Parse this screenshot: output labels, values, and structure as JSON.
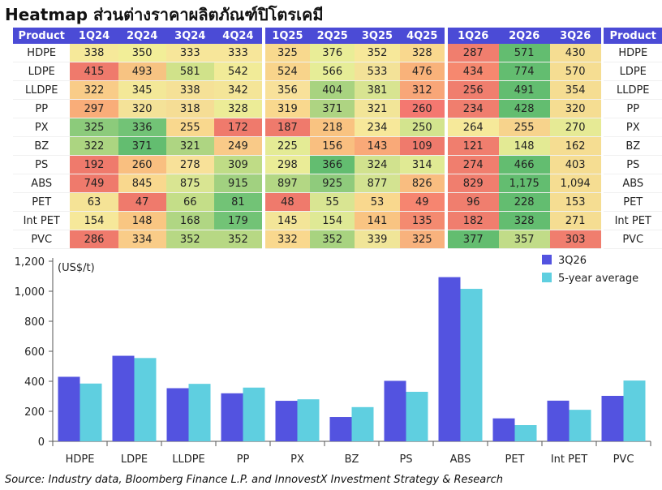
{
  "title": "Heatmap ส่วนต่างราคาผลิตภัณฑ์ปิโตรเคมี",
  "source": "Source: Industry data, Bloomberg Finance L.P. and InnovestX Investment Strategy & Research",
  "heatmap": {
    "header_label": "Product",
    "groups": [
      [
        "1Q24",
        "2Q24",
        "3Q24",
        "4Q24"
      ],
      [
        "1Q25",
        "2Q25",
        "3Q25",
        "4Q25"
      ],
      [
        "1Q26",
        "2Q26",
        "3Q26"
      ]
    ],
    "rows": [
      {
        "product": "HDPE",
        "values": [
          "338",
          "350",
          "333",
          "333",
          "325",
          "376",
          "352",
          "328",
          "287",
          "571",
          "430"
        ],
        "colors": [
          "#f6e99a",
          "#f2ee98",
          "#f7e69a",
          "#f7e69a",
          "#f8d98e",
          "#e9ed97",
          "#f7e89a",
          "#f9d88e",
          "#f07e6e",
          "#63bd70",
          "#f5dd92"
        ]
      },
      {
        "product": "LDPE",
        "values": [
          "415",
          "493",
          "581",
          "542",
          "524",
          "566",
          "533",
          "476",
          "434",
          "774",
          "570"
        ],
        "colors": [
          "#ef7a6c",
          "#f7c382",
          "#d0e28a",
          "#f1eb98",
          "#f8d48b",
          "#e6ed97",
          "#f3e298",
          "#f9b27a",
          "#f6886f",
          "#63bd70",
          "#f5dd92"
        ]
      },
      {
        "product": "LLDPE",
        "values": [
          "322",
          "345",
          "338",
          "342",
          "356",
          "404",
          "381",
          "312",
          "256",
          "491",
          "354"
        ],
        "colors": [
          "#f9cc88",
          "#f3e898",
          "#f5e197",
          "#f4e598",
          "#f8e19a",
          "#a8d380",
          "#d8e491",
          "#f8a678",
          "#f07e6e",
          "#63bd70",
          "#f5dd92"
        ]
      },
      {
        "product": "PP",
        "values": [
          "297",
          "320",
          "318",
          "328",
          "319",
          "371",
          "321",
          "260",
          "234",
          "428",
          "320"
        ],
        "colors": [
          "#f9ad79",
          "#f4e298",
          "#f5dd95",
          "#ecec97",
          "#f9d88e",
          "#aed482",
          "#f2e598",
          "#f47870",
          "#f07e6e",
          "#63bd70",
          "#f5dd92"
        ]
      },
      {
        "product": "PX",
        "values": [
          "325",
          "336",
          "255",
          "172",
          "187",
          "218",
          "234",
          "250",
          "264",
          "255",
          "270"
        ],
        "colors": [
          "#8ccb7b",
          "#72c376",
          "#f9d88e",
          "#ef7a6c",
          "#ef7a6c",
          "#f9c381",
          "#f7e89a",
          "#d3e48e",
          "#f6e99a",
          "#f7d38c",
          "#e6ea95"
        ]
      },
      {
        "product": "BZ",
        "values": [
          "322",
          "371",
          "321",
          "249",
          "225",
          "156",
          "143",
          "109",
          "121",
          "148",
          "162"
        ],
        "colors": [
          "#acd581",
          "#63bd70",
          "#aed582",
          "#f9ca88",
          "#e4eb95",
          "#f9bf80",
          "#f9a978",
          "#ef7a6c",
          "#f07e6e",
          "#e3ea94",
          "#f5dd92"
        ]
      },
      {
        "product": "PS",
        "values": [
          "192",
          "260",
          "278",
          "309",
          "298",
          "366",
          "324",
          "314",
          "274",
          "466",
          "403"
        ],
        "colors": [
          "#ef7a6c",
          "#f9bf80",
          "#f8e199",
          "#bfdc86",
          "#eaec97",
          "#63bd70",
          "#d1e28e",
          "#e0ea94",
          "#f07e6e",
          "#63bd70",
          "#f5dd92"
        ]
      },
      {
        "product": "ABS",
        "values": [
          "749",
          "845",
          "875",
          "915",
          "897",
          "925",
          "877",
          "826",
          "829",
          "1,175",
          "1,094"
        ],
        "colors": [
          "#ef7a6c",
          "#f9d88e",
          "#d9e592",
          "#a1d180",
          "#b3d784",
          "#8fcb7c",
          "#d3e391",
          "#f9bd80",
          "#f07e6e",
          "#63bd70",
          "#f5dd92"
        ]
      },
      {
        "product": "PET",
        "values": [
          "63",
          "47",
          "66",
          "81",
          "48",
          "55",
          "53",
          "49",
          "96",
          "228",
          "153"
        ],
        "colors": [
          "#f5e396",
          "#ef7a6c",
          "#c4de88",
          "#72c376",
          "#ef7a6c",
          "#d9e592",
          "#f9d88e",
          "#f68570",
          "#f07e6e",
          "#63bd70",
          "#f5dd92"
        ]
      },
      {
        "product": "Int PET",
        "values": [
          "154",
          "148",
          "168",
          "179",
          "145",
          "154",
          "141",
          "135",
          "182",
          "328",
          "271"
        ],
        "colors": [
          "#f6e89a",
          "#f9c682",
          "#b0d683",
          "#72c376",
          "#f3e598",
          "#dfe995",
          "#f9c482",
          "#f48a70",
          "#f07e6e",
          "#63bd70",
          "#f5dd92"
        ]
      },
      {
        "product": "PVC",
        "values": [
          "286",
          "334",
          "352",
          "352",
          "332",
          "352",
          "339",
          "325",
          "377",
          "357",
          "303"
        ],
        "colors": [
          "#ef7a6c",
          "#f9cc88",
          "#b7d884",
          "#b7d884",
          "#f9d88e",
          "#a8d380",
          "#f0e598",
          "#f8b27d",
          "#63bd70",
          "#c1dc88",
          "#f07e6e"
        ]
      }
    ]
  },
  "chart_data": {
    "type": "bar",
    "title": "",
    "ylabel": "(US$/t)",
    "xlabel": "",
    "ylim": [
      0,
      1200
    ],
    "yticks": [
      0,
      200,
      400,
      600,
      800,
      1000,
      1200
    ],
    "ytick_labels": [
      "0",
      "200",
      "400",
      "600",
      "800",
      "1,000",
      "1,200"
    ],
    "categories": [
      "HDPE",
      "LDPE",
      "LLDPE",
      "PP",
      "PX",
      "BZ",
      "PS",
      "ABS",
      "PET",
      "Int PET",
      "PVC"
    ],
    "series": [
      {
        "name": "3Q26",
        "color": "#5353e0",
        "values": [
          430,
          570,
          354,
          320,
          270,
          162,
          403,
          1094,
          153,
          271,
          303
        ]
      },
      {
        "name": "5-year average",
        "color": "#5fcfe0",
        "values": [
          385,
          555,
          383,
          358,
          280,
          228,
          330,
          1016,
          108,
          210,
          405
        ]
      }
    ],
    "legend_position": "top-right",
    "grid": false
  }
}
